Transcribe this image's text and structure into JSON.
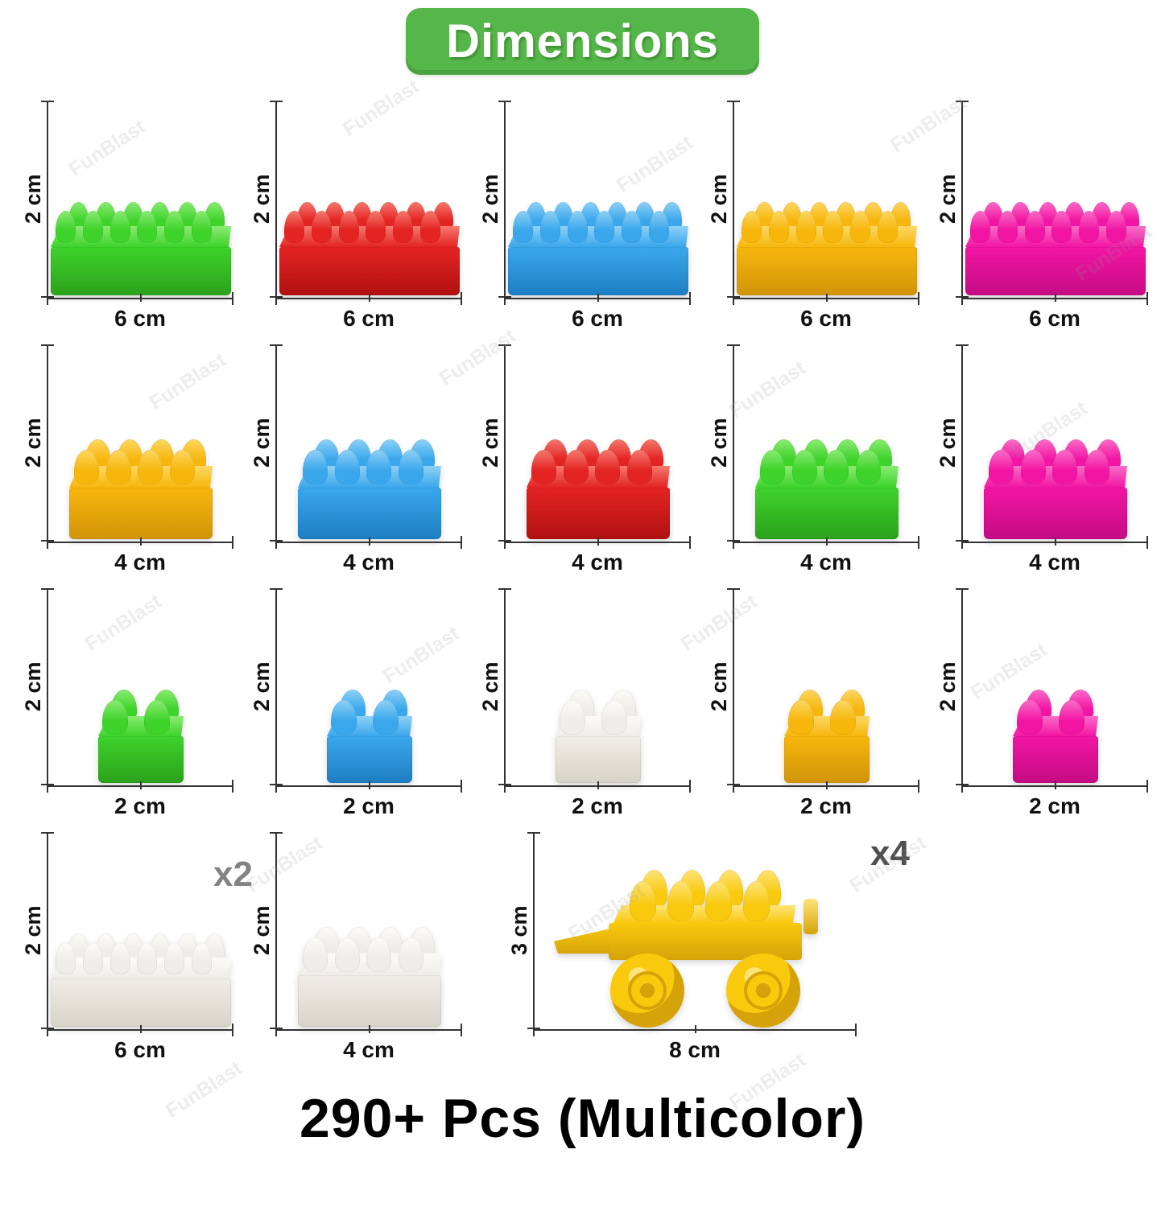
{
  "header": {
    "title": "Dimensions",
    "background": "#55b649",
    "text_color": "#ffffff"
  },
  "watermark": {
    "text": "FunBlast"
  },
  "footer": {
    "text": "290+ Pcs (Multicolor)"
  },
  "colors": {
    "green": {
      "main": "#3ed32b",
      "light": "#8aeb72",
      "dark": "#2ba11c"
    },
    "red": {
      "main": "#e42323",
      "light": "#f47a6e",
      "dark": "#b11010"
    },
    "blue": {
      "main": "#3aa7ec",
      "light": "#8ed1f6",
      "dark": "#1d7ec2"
    },
    "yellow": {
      "main": "#f7b60c",
      "light": "#fcd763",
      "dark": "#d19409"
    },
    "pink": {
      "main": "#f215a3",
      "light": "#fa6cc8",
      "dark": "#c40b83"
    },
    "white": {
      "main": "#efede7",
      "light": "#fcfbf8",
      "dark": "#d6d3c9"
    },
    "car_yellow": {
      "main": "#f9c90e",
      "light": "#fde478",
      "dark": "#d5a309"
    }
  },
  "rows": [
    {
      "name": "row-6cm",
      "cells": [
        {
          "type": "brick",
          "size": "b6",
          "color": "green",
          "studs": 6,
          "height_label": "2 cm",
          "width_label": "6 cm"
        },
        {
          "type": "brick",
          "size": "b6",
          "color": "red",
          "studs": 6,
          "height_label": "2 cm",
          "width_label": "6 cm"
        },
        {
          "type": "brick",
          "size": "b6",
          "color": "blue",
          "studs": 6,
          "height_label": "2 cm",
          "width_label": "6 cm"
        },
        {
          "type": "brick",
          "size": "b6",
          "color": "yellow",
          "studs": 6,
          "height_label": "2 cm",
          "width_label": "6 cm"
        },
        {
          "type": "brick",
          "size": "b6",
          "color": "pink",
          "studs": 6,
          "height_label": "2 cm",
          "width_label": "6 cm"
        }
      ]
    },
    {
      "name": "row-4cm",
      "cells": [
        {
          "type": "brick",
          "size": "b4",
          "color": "yellow",
          "studs": 4,
          "height_label": "2 cm",
          "width_label": "4 cm"
        },
        {
          "type": "brick",
          "size": "b4",
          "color": "blue",
          "studs": 4,
          "height_label": "2 cm",
          "width_label": "4 cm"
        },
        {
          "type": "brick",
          "size": "b4",
          "color": "red",
          "studs": 4,
          "height_label": "2 cm",
          "width_label": "4 cm"
        },
        {
          "type": "brick",
          "size": "b4",
          "color": "green",
          "studs": 4,
          "height_label": "2 cm",
          "width_label": "4 cm"
        },
        {
          "type": "brick",
          "size": "b4",
          "color": "pink",
          "studs": 4,
          "height_label": "2 cm",
          "width_label": "4 cm"
        }
      ]
    },
    {
      "name": "row-2cm",
      "cells": [
        {
          "type": "brick",
          "size": "b2",
          "color": "green",
          "studs": 2,
          "height_label": "2 cm",
          "width_label": "2 cm"
        },
        {
          "type": "brick",
          "size": "b2",
          "color": "blue",
          "studs": 2,
          "height_label": "2 cm",
          "width_label": "2 cm"
        },
        {
          "type": "brick",
          "size": "b2",
          "color": "white",
          "studs": 2,
          "height_label": "2 cm",
          "width_label": "2 cm"
        },
        {
          "type": "brick",
          "size": "b2",
          "color": "yellow",
          "studs": 2,
          "height_label": "2 cm",
          "width_label": "2 cm"
        },
        {
          "type": "brick",
          "size": "b2",
          "color": "pink",
          "studs": 2,
          "height_label": "2 cm",
          "width_label": "2 cm"
        }
      ]
    },
    {
      "name": "row-special",
      "cells": [
        {
          "type": "brick",
          "size": "b6",
          "color": "white",
          "studs": 6,
          "height_label": "2 cm",
          "width_label": "6 cm",
          "multiplier": "x2"
        },
        {
          "type": "brick",
          "size": "b4",
          "color": "white",
          "studs": 4,
          "height_label": "2 cm",
          "width_label": "4 cm"
        },
        {
          "type": "car",
          "size": "car",
          "color": "car_yellow",
          "studs": 4,
          "height_label": "3 cm",
          "width_label": "8 cm",
          "multiplier": "x4"
        }
      ]
    }
  ]
}
